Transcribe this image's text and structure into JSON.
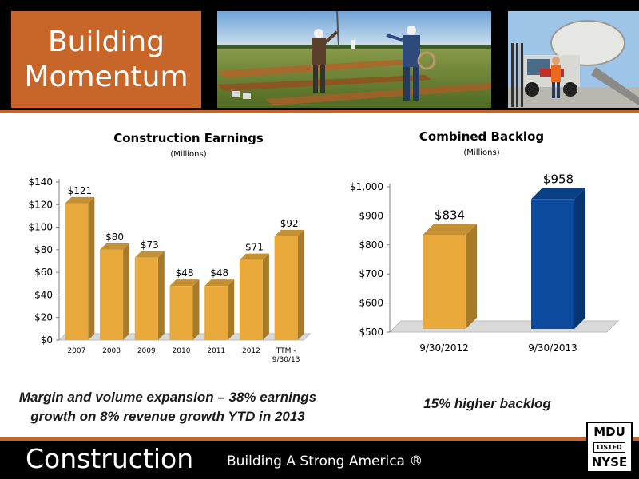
{
  "header": {
    "title": "Building\nMomentum"
  },
  "footer": {
    "title": "Construction",
    "tagline": "Building A Strong America ®",
    "badge": {
      "top": "MDU",
      "middle": "LISTED",
      "bottom": "NYSE"
    }
  },
  "captions": {
    "left": "Margin and volume expansion – 38% earnings growth on 8% revenue growth YTD in 2013",
    "right": "15% higher backlog"
  },
  "colors": {
    "orange": "#c8662a",
    "gold": "#e8a93a",
    "blue": "#0b4a9c"
  },
  "chart_data": [
    {
      "type": "bar",
      "title": "Construction Earnings",
      "subtitle": "(Millions)",
      "categories": [
        "2007",
        "2008",
        "2009",
        "2010",
        "2011",
        "2012",
        "TTM - 9/30/13"
      ],
      "values": [
        121,
        80,
        73,
        48,
        48,
        71,
        92
      ],
      "data_labels": [
        "$121",
        "$80",
        "$73",
        "$48",
        "$48",
        "$71",
        "$92"
      ],
      "yticks": [
        "$0",
        "$20",
        "$40",
        "$60",
        "$80",
        "$100",
        "$120",
        "$140"
      ],
      "ytick_values": [
        0,
        20,
        40,
        60,
        80,
        100,
        120,
        140
      ],
      "ylim": [
        0,
        140
      ],
      "grid": false,
      "legend": "none",
      "bar_color": "#e8a93a"
    },
    {
      "type": "bar",
      "title": "Combined Backlog",
      "subtitle": "(Millions)",
      "categories": [
        "9/30/2012",
        "9/30/2013"
      ],
      "values": [
        834,
        958
      ],
      "data_labels": [
        "$834",
        "$958"
      ],
      "yticks": [
        "$500",
        "$600",
        "$700",
        "$800",
        "$900",
        "$1,000"
      ],
      "ytick_values": [
        500,
        600,
        700,
        800,
        900,
        1000
      ],
      "ylim": [
        500,
        1000
      ],
      "grid": false,
      "legend": "none",
      "bar_colors": [
        "#e8a93a",
        "#0b4a9c"
      ]
    }
  ]
}
